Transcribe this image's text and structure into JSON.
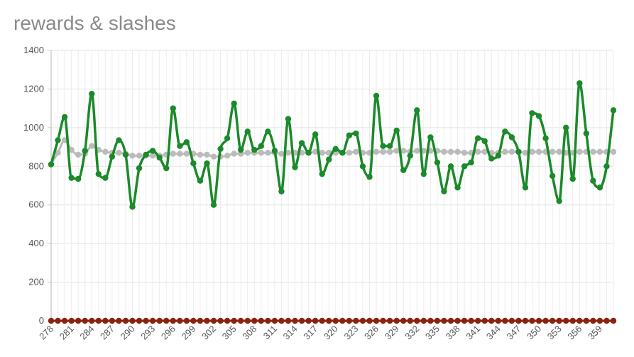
{
  "chart_data": {
    "type": "line",
    "title": "rewards & slashes",
    "x": [
      278,
      279,
      280,
      281,
      282,
      283,
      284,
      285,
      286,
      287,
      288,
      289,
      290,
      291,
      292,
      293,
      294,
      295,
      296,
      297,
      298,
      299,
      300,
      301,
      302,
      303,
      304,
      305,
      306,
      307,
      308,
      309,
      310,
      311,
      312,
      313,
      314,
      315,
      316,
      317,
      318,
      319,
      320,
      321,
      322,
      323,
      324,
      325,
      326,
      327,
      328,
      329,
      330,
      331,
      332,
      333,
      334,
      335,
      336,
      337,
      338,
      339,
      340,
      341,
      342,
      343,
      344,
      345,
      346,
      347,
      348,
      349,
      350,
      351,
      352,
      353,
      354,
      355,
      356,
      357,
      358,
      359,
      360,
      361
    ],
    "x_tick_labels": [
      "278",
      "281",
      "284",
      "287",
      "290",
      "293",
      "296",
      "299",
      "302",
      "305",
      "308",
      "311",
      "314",
      "317",
      "320",
      "323",
      "326",
      "329",
      "332",
      "335",
      "338",
      "341",
      "344",
      "347",
      "350",
      "353",
      "356",
      "359"
    ],
    "ylim": [
      0,
      1400
    ],
    "y_ticks": [
      0,
      200,
      400,
      600,
      800,
      1000,
      1200,
      1400
    ],
    "grid": true,
    "series": [
      {
        "color": "#1a8a2a",
        "values": [
          810,
          935,
          1055,
          740,
          735,
          880,
          1175,
          760,
          740,
          850,
          935,
          860,
          590,
          790,
          860,
          880,
          845,
          790,
          1100,
          905,
          925,
          815,
          725,
          815,
          600,
          890,
          945,
          1125,
          885,
          980,
          885,
          905,
          980,
          880,
          670,
          1045,
          795,
          920,
          870,
          965,
          760,
          835,
          890,
          870,
          960,
          970,
          800,
          745,
          1165,
          905,
          905,
          985,
          780,
          855,
          1090,
          760,
          950,
          820,
          670,
          800,
          690,
          800,
          820,
          945,
          930,
          840,
          855,
          980,
          950,
          875,
          690,
          1075,
          1060,
          945,
          750,
          620,
          1000,
          735,
          1230,
          970,
          725,
          690,
          800,
          1090
        ]
      },
      {
        "color": "#bbbbbb",
        "values": [
          810,
          870,
          935,
          885,
          860,
          865,
          905,
          885,
          875,
          870,
          870,
          865,
          855,
          855,
          855,
          855,
          855,
          860,
          865,
          865,
          865,
          865,
          860,
          860,
          850,
          850,
          855,
          865,
          865,
          870,
          870,
          870,
          870,
          870,
          865,
          870,
          870,
          870,
          870,
          875,
          870,
          870,
          870,
          870,
          870,
          875,
          870,
          870,
          875,
          875,
          875,
          880,
          880,
          875,
          880,
          880,
          880,
          880,
          875,
          875,
          875,
          870,
          870,
          875,
          875,
          870,
          870,
          875,
          875,
          875,
          870,
          875,
          875,
          875,
          875,
          875,
          870,
          870,
          875,
          875,
          875,
          875,
          875,
          875
        ]
      },
      {
        "color": "#8b2210",
        "values": [
          0,
          0,
          0,
          0,
          0,
          0,
          0,
          0,
          0,
          0,
          0,
          0,
          0,
          0,
          0,
          0,
          0,
          0,
          0,
          0,
          0,
          0,
          0,
          0,
          0,
          0,
          0,
          0,
          0,
          0,
          0,
          0,
          0,
          0,
          0,
          0,
          0,
          0,
          0,
          0,
          0,
          0,
          0,
          0,
          0,
          0,
          0,
          0,
          0,
          0,
          0,
          0,
          0,
          0,
          0,
          0,
          0,
          0,
          0,
          0,
          0,
          0,
          0,
          0,
          0,
          0,
          0,
          0,
          0,
          0,
          0,
          0,
          0,
          0,
          0,
          0,
          0,
          0,
          0,
          0,
          0,
          0,
          0,
          0
        ]
      }
    ]
  }
}
